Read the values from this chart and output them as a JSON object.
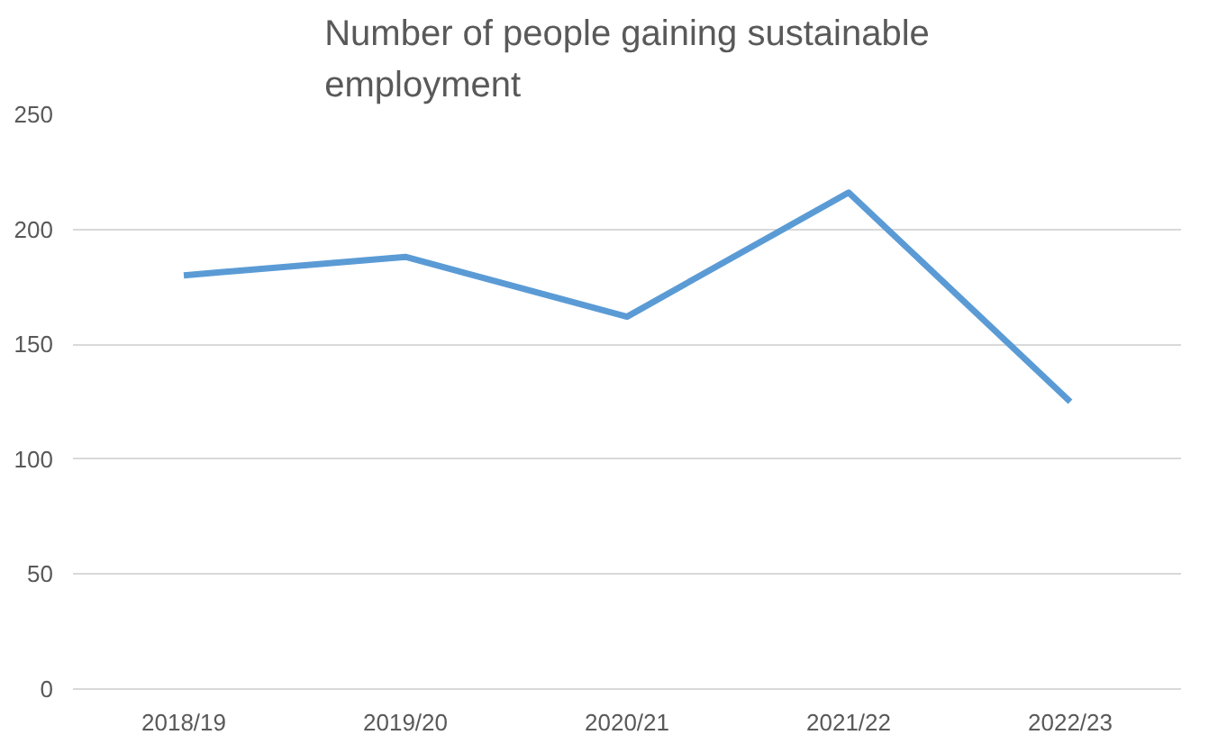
{
  "chart_data": {
    "type": "line",
    "title": "Number of people gaining sustainable employment",
    "categories": [
      "2018/19",
      "2019/20",
      "2020/21",
      "2021/22",
      "2022/23"
    ],
    "series": [
      {
        "color": "#5b9bd5",
        "values": [
          180,
          188,
          162,
          216,
          125
        ]
      }
    ],
    "ylim": [
      0,
      250
    ],
    "yticks": [
      0,
      50,
      100,
      150,
      200,
      250
    ],
    "grid": "y",
    "marker": "none",
    "line_style": "solid"
  }
}
